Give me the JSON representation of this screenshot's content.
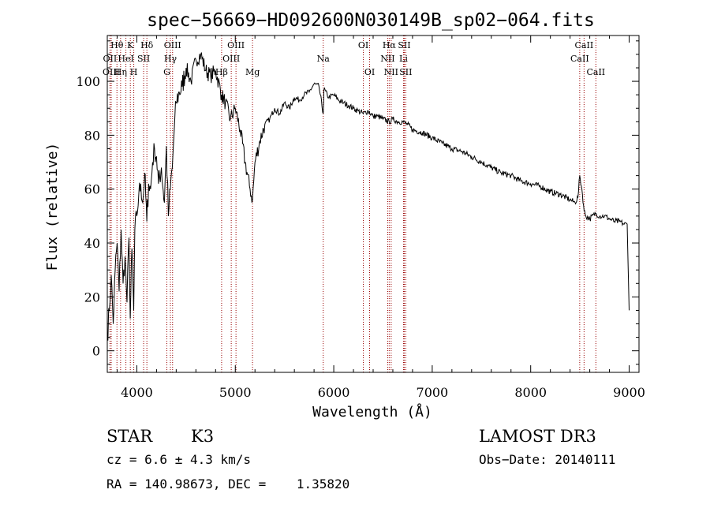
{
  "chart_data": {
    "type": "line",
    "title": "spec−56669−HD092600N030149B_sp02−064.fits",
    "xlabel": "Wavelength (Å)",
    "ylabel": "Flux (relative)",
    "xlim": [
      3700,
      9100
    ],
    "ylim": [
      -8,
      117
    ],
    "xticks": [
      4000,
      5000,
      6000,
      7000,
      8000,
      9000
    ],
    "yticks": [
      0,
      20,
      40,
      60,
      80,
      100
    ],
    "x_tick_labels": [
      "4000",
      "5000",
      "6000",
      "7000",
      "8000",
      "9000"
    ],
    "y_tick_labels": [
      "0",
      "20",
      "40",
      "60",
      "80",
      "100"
    ],
    "grid": false,
    "legend": "none",
    "line_color": "#000000",
    "marker_color": "#990000",
    "spectrum": {
      "x": [
        3700,
        3720,
        3740,
        3760,
        3780,
        3800,
        3820,
        3840,
        3860,
        3880,
        3900,
        3920,
        3933,
        3950,
        3968,
        3980,
        4000,
        4020,
        4040,
        4060,
        4080,
        4101,
        4120,
        4140,
        4160,
        4180,
        4200,
        4220,
        4250,
        4280,
        4300,
        4320,
        4340,
        4360,
        4380,
        4400,
        4430,
        4460,
        4500,
        4550,
        4600,
        4650,
        4700,
        4750,
        4800,
        4861,
        4900,
        4950,
        5000,
        5050,
        5100,
        5150,
        5175,
        5200,
        5250,
        5300,
        5350,
        5400,
        5450,
        5500,
        5550,
        5600,
        5650,
        5700,
        5750,
        5800,
        5850,
        5893,
        5900,
        5950,
        6000,
        6050,
        6100,
        6150,
        6200,
        6250,
        6300,
        6350,
        6400,
        6450,
        6500,
        6563,
        6600,
        6650,
        6700,
        6750,
        6800,
        6900,
        7000,
        7100,
        7200,
        7300,
        7400,
        7500,
        7600,
        7700,
        7800,
        7900,
        8000,
        8100,
        8200,
        8300,
        8400,
        8450,
        8480,
        8498,
        8520,
        8542,
        8560,
        8600,
        8662,
        8700,
        8750,
        8800,
        8850,
        8900,
        8950,
        8980,
        9000
      ],
      "y": [
        5,
        15,
        28,
        10,
        30,
        40,
        22,
        45,
        25,
        35,
        18,
        42,
        12,
        38,
        15,
        45,
        50,
        58,
        62,
        55,
        66,
        48,
        62,
        60,
        70,
        75,
        72,
        62,
        68,
        55,
        76,
        50,
        60,
        68,
        82,
        92,
        96,
        98,
        105,
        100,
        108,
        110,
        104,
        102,
        104,
        95,
        92,
        86,
        90,
        82,
        70,
        60,
        56,
        70,
        78,
        84,
        86,
        90,
        88,
        92,
        90,
        94,
        93,
        95,
        96,
        99,
        98,
        88,
        97,
        94,
        95,
        93,
        92,
        91,
        90,
        89,
        88,
        89,
        87,
        87,
        86,
        85,
        86,
        85,
        85,
        84,
        82,
        81,
        79,
        77,
        75,
        74,
        72,
        70,
        68,
        66,
        65,
        63,
        62,
        61,
        59,
        58,
        56,
        55,
        57,
        65,
        60,
        52,
        50,
        49,
        51,
        50,
        50,
        49,
        48,
        48,
        47,
        47,
        15
      ]
    },
    "lines": [
      {
        "name": "Hθ",
        "x": 3798,
        "row": 1
      },
      {
        "name": "OII",
        "x": 3727,
        "row": 2
      },
      {
        "name": "OIII",
        "x": 3740,
        "row": 3
      },
      {
        "name": "K",
        "x": 3934,
        "row": 1
      },
      {
        "name": "Hη",
        "x": 3835,
        "row": 3
      },
      {
        "name": "HeI",
        "x": 3889,
        "row": 2
      },
      {
        "name": "H",
        "x": 3969,
        "row": 3
      },
      {
        "name": "SII",
        "x": 4069,
        "row": 2
      },
      {
        "name": "Hδ",
        "x": 4102,
        "row": 1
      },
      {
        "name": "OIII",
        "x": 4363,
        "row": 1
      },
      {
        "name": "Hγ",
        "x": 4341,
        "row": 2
      },
      {
        "name": "G",
        "x": 4305,
        "row": 3
      },
      {
        "name": "OIII",
        "x": 5007,
        "row": 1
      },
      {
        "name": "OIII",
        "x": 4959,
        "row": 2
      },
      {
        "name": "Hβ",
        "x": 4861,
        "row": 3
      },
      {
        "name": "Mg",
        "x": 5175,
        "row": 3
      },
      {
        "name": "Na",
        "x": 5893,
        "row": 2
      },
      {
        "name": "OI",
        "x": 6300,
        "row": 1
      },
      {
        "name": "OI",
        "x": 6364,
        "row": 3
      },
      {
        "name": "Hα",
        "x": 6563,
        "row": 1
      },
      {
        "name": "SII",
        "x": 6716,
        "row": 1
      },
      {
        "name": "NII",
        "x": 6548,
        "row": 2
      },
      {
        "name": "Li",
        "x": 6708,
        "row": 2
      },
      {
        "name": "NII",
        "x": 6583,
        "row": 3
      },
      {
        "name": "SII",
        "x": 6731,
        "row": 3
      },
      {
        "name": "CaII",
        "x": 8542,
        "row": 1
      },
      {
        "name": "CaII",
        "x": 8498,
        "row": 2
      },
      {
        "name": "CaII",
        "x": 8662,
        "row": 3
      }
    ]
  },
  "info": {
    "object_class": "STAR",
    "subclass": "K3",
    "survey": "LAMOST DR3",
    "cz": "cz = 6.6 ± 4.3 km/s",
    "obs_date": "Obs−Date: 20140111",
    "coords": "RA = 140.98673, DEC =    1.35820"
  }
}
